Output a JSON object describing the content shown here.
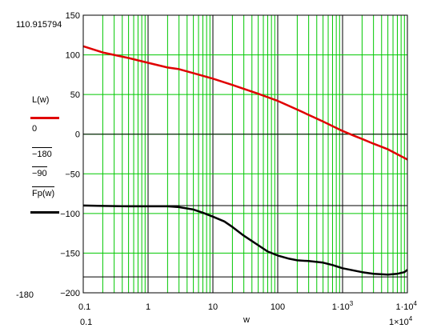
{
  "colors": {
    "grid": "#00c800",
    "red": "#e00000",
    "black": "#000000"
  },
  "annotations": {
    "ytop": "110.915794",
    "ybottom": "-180",
    "xleft": "0.1",
    "xright": "1×10",
    "xright_exp": "4"
  },
  "legend": {
    "entries": [
      "L(w)",
      "0",
      "−180",
      "−90",
      "Fp(w)"
    ]
  },
  "chart_data": {
    "type": "line",
    "xscale": "log",
    "xlim": [
      0.1,
      10000
    ],
    "ylim": [
      -200,
      150
    ],
    "xlabel": "w",
    "x_ticks": [
      {
        "v": 0.1,
        "label": "0.1"
      },
      {
        "v": 1,
        "label": "1"
      },
      {
        "v": 10,
        "label": "10"
      },
      {
        "v": 100,
        "label": "100"
      },
      {
        "v": 1000,
        "label": "1·10",
        "exp": "3"
      },
      {
        "v": 10000,
        "label": "1·10",
        "exp": "4"
      }
    ],
    "y_ticks": [
      {
        "v": 150,
        "label": "150"
      },
      {
        "v": 100,
        "label": "100"
      },
      {
        "v": 50,
        "label": "50"
      },
      {
        "v": 0,
        "label": "0"
      },
      {
        "v": -50,
        "label": "−50"
      },
      {
        "v": -100,
        "label": "−100"
      },
      {
        "v": -150,
        "label": "−150"
      },
      {
        "v": -200,
        "label": "−200"
      }
    ],
    "grid": true,
    "hlines": [
      0,
      -180,
      -90
    ],
    "series": [
      {
        "name": "L(w)",
        "color": "#e00000",
        "x": [
          0.1,
          0.2,
          0.5,
          1,
          2,
          3,
          5,
          10,
          20,
          50,
          100,
          200,
          500,
          1000,
          1500,
          2000,
          3000,
          5000,
          10000
        ],
        "y": [
          110.9,
          103,
          96,
          90,
          84,
          82,
          77,
          70,
          62,
          51,
          42,
          31,
          16,
          4,
          -2,
          -6,
          -12,
          -19,
          -32
        ]
      },
      {
        "name": "Fp(w)",
        "color": "#000000",
        "x": [
          0.1,
          0.2,
          0.5,
          1,
          2,
          3,
          5,
          7,
          10,
          15,
          20,
          30,
          50,
          70,
          100,
          150,
          200,
          300,
          500,
          700,
          1000,
          2000,
          3000,
          5000,
          7000,
          9000,
          10000
        ],
        "y": [
          -90,
          -90.5,
          -91,
          -91,
          -91,
          -92,
          -95,
          -99,
          -104,
          -110,
          -117,
          -128,
          -140,
          -148,
          -153,
          -157,
          -159,
          -160,
          -162,
          -165,
          -169,
          -174,
          -176,
          -177,
          -176,
          -174,
          -171
        ]
      }
    ]
  }
}
